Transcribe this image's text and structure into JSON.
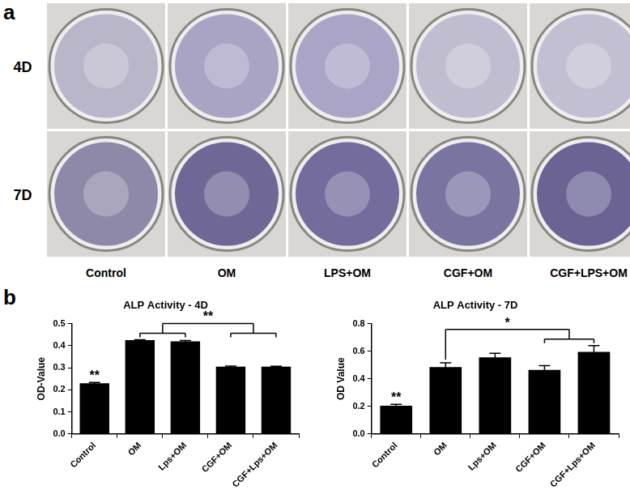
{
  "panel_a": {
    "label": "a",
    "rows": [
      "4D",
      "7D"
    ],
    "columns": [
      "Control",
      "OM",
      "LPS+OM",
      "CGF+OM",
      "CGF+LPS+OM"
    ]
  },
  "panel_b": {
    "label": "b"
  },
  "chart_data": [
    {
      "type": "bar",
      "title": "ALP Activity - 4D",
      "y_label": "OD-Value",
      "categories": [
        "Control",
        "OM",
        "Lps+OM",
        "CGF+OM",
        "CGF+Lps+OM"
      ],
      "values": [
        0.23,
        0.425,
        0.42,
        0.305,
        0.305
      ],
      "errors": [
        0.003,
        0.002,
        0.003,
        0.003,
        0.002
      ],
      "color": "#000000",
      "ylim": [
        0,
        0.5
      ],
      "yticks": [
        {
          "value": 0,
          "label": "0.0"
        },
        0.1,
        0.2,
        0.3,
        0.4,
        0.5
      ],
      "grid": false,
      "legend": false,
      "annotations": [
        {
          "text": "**",
          "categories": [
            "Control"
          ]
        },
        {
          "text": "**",
          "left": [
            "OM",
            "Lps+OM"
          ],
          "right": [
            "CGF+OM",
            "CGF+Lps+OM"
          ]
        }
      ]
    },
    {
      "type": "bar",
      "title": "ALP Activity - 7D",
      "y_label": "OD Value",
      "categories": [
        "Control",
        "OM",
        "Lps+OM",
        "CGF+OM",
        "CGF+Lps+OM"
      ],
      "values": [
        0.205,
        0.485,
        0.555,
        0.465,
        0.595
      ],
      "errors": [
        0.01,
        0.03,
        0.03,
        0.03,
        0.045
      ],
      "color": "#000000",
      "ylim": [
        0,
        0.8
      ],
      "yticks": [
        {
          "value": 0,
          "label": "0.0"
        },
        0.2,
        0.4,
        0.6,
        0.8
      ],
      "grid": false,
      "legend": false,
      "annotations": [
        {
          "text": "**",
          "categories": [
            "Control"
          ]
        },
        {
          "text": "*",
          "left": [
            "OM"
          ],
          "right": [
            "CGF+OM",
            "CGF+Lps+OM"
          ]
        }
      ]
    }
  ]
}
